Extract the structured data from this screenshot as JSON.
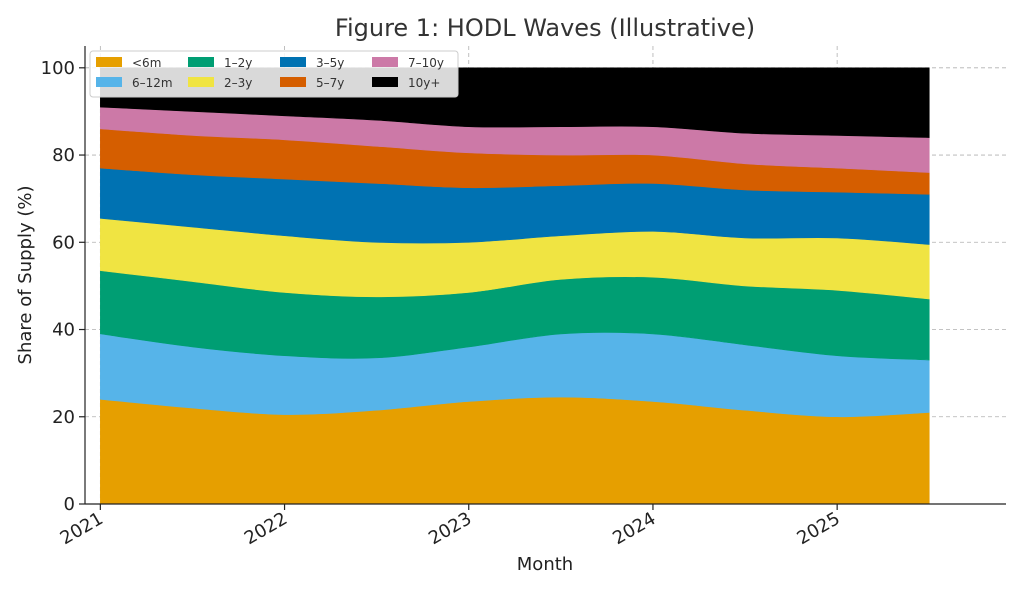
{
  "chart_data": {
    "type": "area",
    "stacked": true,
    "title": "Figure 1: HODL Waves (Illustrative)",
    "xlabel": "Month",
    "ylabel": "Share of Supply (%)",
    "x_ticks": [
      "2021",
      "2022",
      "2023",
      "2024",
      "2025"
    ],
    "x": [
      "2021-01",
      "2021-07",
      "2022-01",
      "2022-07",
      "2023-01",
      "2023-07",
      "2024-01",
      "2024-07",
      "2025-01",
      "2025-07"
    ],
    "x_range": [
      "2020-12",
      "2025-12"
    ],
    "ylim": [
      0,
      105
    ],
    "y_ticks": [
      0,
      20,
      40,
      60,
      80,
      100
    ],
    "grid": true,
    "legend_position": "top-left",
    "legend_columns": 4,
    "series": [
      {
        "name": "<6m",
        "color": "#e69f00",
        "values": [
          24.0,
          22.0,
          20.5,
          21.5,
          23.5,
          24.5,
          23.5,
          21.5,
          20.0,
          21.0
        ]
      },
      {
        "name": "6–12m",
        "color": "#56b4e9",
        "values": [
          15.0,
          14.0,
          13.5,
          12.0,
          12.5,
          14.5,
          15.5,
          15.0,
          14.0,
          12.0
        ]
      },
      {
        "name": "1–2y",
        "color": "#009e73",
        "values": [
          14.5,
          15.0,
          14.5,
          14.0,
          12.5,
          12.5,
          13.0,
          13.5,
          15.0,
          14.0
        ]
      },
      {
        "name": "2–3y",
        "color": "#f0e442",
        "values": [
          12.0,
          12.5,
          13.0,
          12.5,
          11.5,
          10.0,
          10.5,
          11.0,
          12.0,
          12.5
        ]
      },
      {
        "name": "3–5y",
        "color": "#0072b2",
        "values": [
          11.5,
          12.0,
          13.0,
          13.5,
          12.5,
          11.5,
          11.0,
          11.0,
          10.5,
          11.5
        ]
      },
      {
        "name": "5–7y",
        "color": "#d55e00",
        "values": [
          9.0,
          9.0,
          9.0,
          8.5,
          8.0,
          7.0,
          6.5,
          6.0,
          5.5,
          5.0
        ]
      },
      {
        "name": "7–10y",
        "color": "#cc79a7",
        "values": [
          5.0,
          5.5,
          5.5,
          6.0,
          6.0,
          6.5,
          6.5,
          7.0,
          7.5,
          8.0
        ]
      },
      {
        "name": "10y+",
        "color": "#000000",
        "values": [
          9.0,
          10.0,
          11.0,
          12.0,
          13.5,
          13.5,
          13.5,
          15.0,
          15.5,
          16.0
        ]
      }
    ]
  }
}
